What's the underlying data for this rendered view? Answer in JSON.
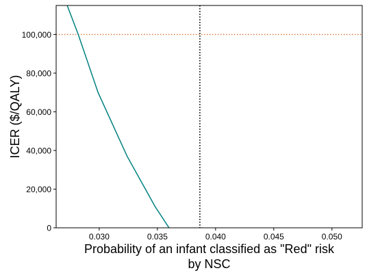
{
  "chart_data": {
    "type": "line",
    "title": "",
    "xlabel_lines": [
      "Probability of an infant classified as \"Red\" risk",
      "by NSC"
    ],
    "ylabel": "ICER ($/QALY)",
    "xlim": [
      0.0263,
      0.0526
    ],
    "ylim": [
      0,
      115000
    ],
    "x_ticks": [
      0.03,
      0.035,
      0.04,
      0.045,
      0.05
    ],
    "x_tick_labels": [
      "0.030",
      "0.035",
      "0.040",
      "0.045",
      "0.050"
    ],
    "y_ticks": [
      0,
      20000,
      40000,
      60000,
      80000,
      100000
    ],
    "y_tick_labels": [
      "0",
      "20,000",
      "40,000",
      "60,000",
      "80,000",
      "100,000"
    ],
    "grid": false,
    "series": [
      {
        "color": "#008080",
        "x": [
          0.02725,
          0.0282,
          0.0299,
          0.0324,
          0.0348,
          0.036
        ],
        "y": [
          115000,
          100000,
          70000,
          37000,
          11000,
          0
        ]
      }
    ],
    "reference_lines": [
      {
        "orientation": "horizontal",
        "value": 100000,
        "color": "#d2691e",
        "style": "dotted"
      },
      {
        "orientation": "vertical",
        "value": 0.03865,
        "color": "#000000",
        "style": "dotted"
      }
    ]
  }
}
